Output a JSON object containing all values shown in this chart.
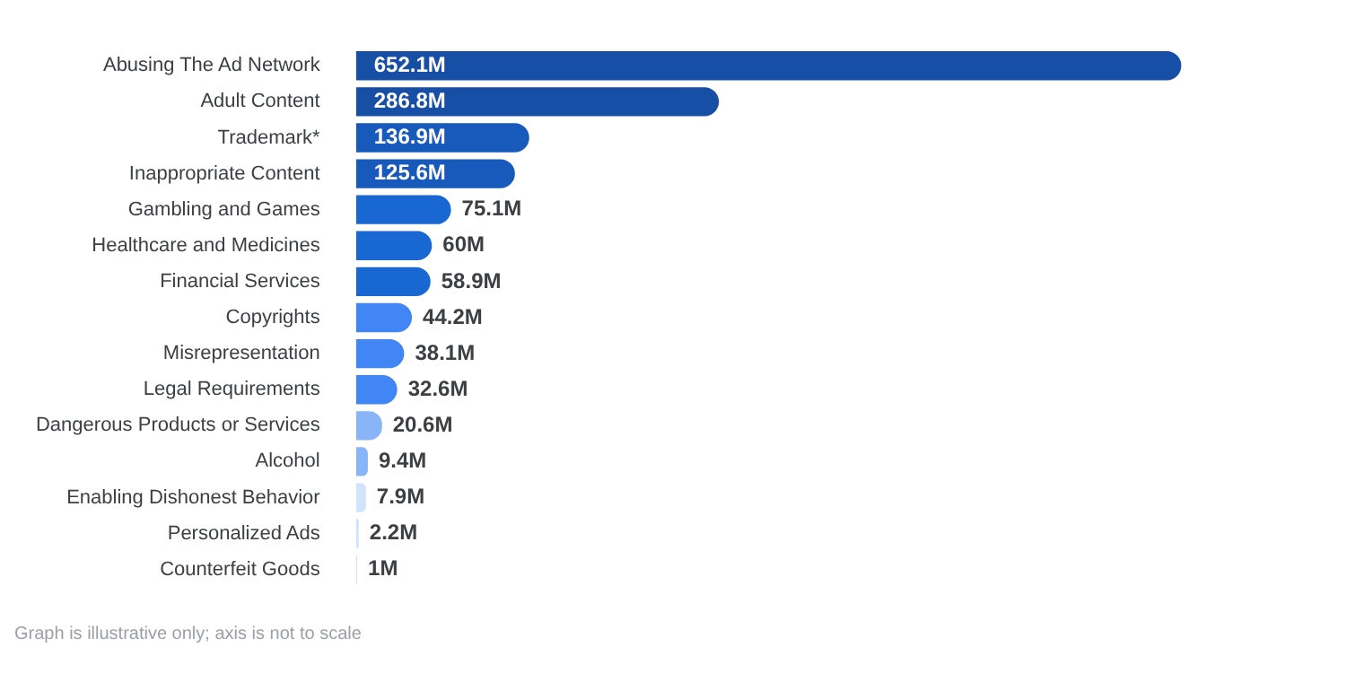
{
  "chart_data": {
    "type": "bar",
    "orientation": "horizontal",
    "categories": [
      "Abusing The Ad Network",
      "Adult Content",
      "Trademark*",
      "Inappropriate Content",
      "Gambling and Games",
      "Healthcare and Medicines",
      "Financial Services",
      "Copyrights",
      "Misrepresentation",
      "Legal Requirements",
      "Dangerous Products or Services",
      "Alcohol",
      "Enabling Dishonest Behavior",
      "Personalized Ads",
      "Counterfeit Goods"
    ],
    "values": [
      652.1,
      286.8,
      136.9,
      125.6,
      75.1,
      60,
      58.9,
      44.2,
      38.1,
      32.6,
      20.6,
      9.4,
      7.9,
      2.2,
      1
    ],
    "value_labels": [
      "652.1M",
      "286.8M",
      "136.9M",
      "125.6M",
      "75.1M",
      "60M",
      "58.9M",
      "44.2M",
      "38.1M",
      "32.6M",
      "20.6M",
      "9.4M",
      "7.9M",
      "2.2M",
      "1M"
    ],
    "colors": [
      "#174ea6",
      "#174ea6",
      "#185abc",
      "#185abc",
      "#1967d2",
      "#1967d2",
      "#1967d2",
      "#4285f4",
      "#4285f4",
      "#4285f4",
      "#8ab4f8",
      "#8ab4f8",
      "#d2e3fc",
      "#d2e3fc",
      "#d2e3fc"
    ],
    "tick_labels": "y",
    "annotations": [
      "Graph is illustrative only; axis is not to scale"
    ]
  }
}
